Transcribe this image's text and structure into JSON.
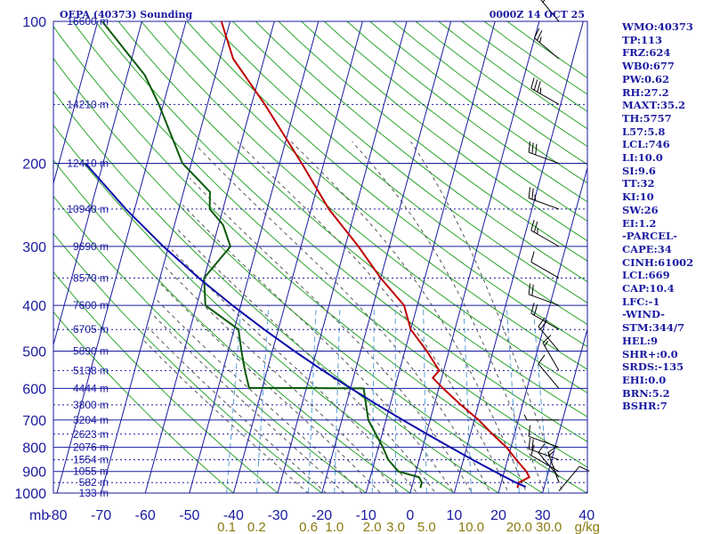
{
  "header": {
    "station": "OEPA (40373) Sounding",
    "time": "0000Z 14 OCT 25"
  },
  "chart_data": {
    "type": "skew-t",
    "title": "OEPA (40373) Sounding",
    "valid_time": "0000Z 14 OCT 25",
    "pressure_axis": {
      "label": "mb",
      "range": [
        1000,
        100
      ],
      "ticks": [
        100,
        200,
        300,
        400,
        500,
        600,
        700,
        800,
        900,
        1000
      ],
      "tick_labels": [
        "100",
        "200",
        "300",
        "400",
        "500",
        "600",
        "700",
        "800",
        "900",
        "1000"
      ]
    },
    "temperature_axis": {
      "label": "°C",
      "range": [
        -80,
        40
      ],
      "ticks": [
        -80,
        -70,
        -60,
        -50,
        -40,
        -30,
        -20,
        -10,
        0,
        10,
        20,
        30,
        40
      ],
      "tick_labels": [
        "-80",
        "-70",
        "-60",
        "-50",
        "-40",
        "-30",
        "-20",
        "-10",
        "0",
        "10",
        "20",
        "30",
        "40"
      ]
    },
    "mixing_ratio_axis": {
      "unit": "g/kg",
      "ticks": [
        0.1,
        0.2,
        0.6,
        1.0,
        2.0,
        3.0,
        5.0,
        10.0,
        20.0,
        30.0
      ],
      "tick_labels": [
        "0.1",
        "0.2",
        "0.6",
        "1.0",
        "2.0",
        "3.0",
        "5.0",
        "10.0",
        "20.0",
        "30.0"
      ],
      "unit_label": "g/kg"
    },
    "height_labels": [
      {
        "p": 100,
        "label": "16600 m"
      },
      {
        "p": 150,
        "label": "14210 m"
      },
      {
        "p": 200,
        "label": "12410 m"
      },
      {
        "p": 250,
        "label": "10940 m"
      },
      {
        "p": 300,
        "label": "9690 m"
      },
      {
        "p": 350,
        "label": "8570 m"
      },
      {
        "p": 400,
        "label": "7600 m"
      },
      {
        "p": 450,
        "label": "6705 m"
      },
      {
        "p": 500,
        "label": "5890 m"
      },
      {
        "p": 550,
        "label": "5138 m"
      },
      {
        "p": 600,
        "label": "4444 m"
      },
      {
        "p": 650,
        "label": "3800 m"
      },
      {
        "p": 700,
        "label": "3204 m"
      },
      {
        "p": 750,
        "label": "2623 m"
      },
      {
        "p": 800,
        "label": "2076 m"
      },
      {
        "p": 850,
        "label": "1554 m"
      },
      {
        "p": 900,
        "label": "1055 m"
      },
      {
        "p": 950,
        "label": "582 m"
      },
      {
        "p": 1000,
        "label": "133 m"
      }
    ],
    "series": [
      {
        "name": "temperature",
        "color": "#c00000",
        "points": [
          [
            975,
            24
          ],
          [
            950,
            24
          ],
          [
            925,
            26
          ],
          [
            900,
            25
          ],
          [
            850,
            22
          ],
          [
            800,
            19
          ],
          [
            750,
            15
          ],
          [
            700,
            11
          ],
          [
            650,
            6
          ],
          [
            600,
            1
          ],
          [
            570,
            -2
          ],
          [
            550,
            -1
          ],
          [
            500,
            -5
          ],
          [
            450,
            -10
          ],
          [
            400,
            -13
          ],
          [
            350,
            -20
          ],
          [
            300,
            -27
          ],
          [
            250,
            -36
          ],
          [
            200,
            -45
          ],
          [
            150,
            -57
          ],
          [
            120,
            -67
          ],
          [
            100,
            -72
          ]
        ]
      },
      {
        "name": "dewpoint",
        "color": "#0a5a0a",
        "points": [
          [
            975,
            2
          ],
          [
            950,
            2
          ],
          [
            925,
            1
          ],
          [
            900,
            -4
          ],
          [
            850,
            -7
          ],
          [
            800,
            -9
          ],
          [
            700,
            -14
          ],
          [
            600,
            -17
          ],
          [
            598,
            -43
          ],
          [
            550,
            -45
          ],
          [
            500,
            -47
          ],
          [
            450,
            -49
          ],
          [
            400,
            -58
          ],
          [
            350,
            -60
          ],
          [
            300,
            -56
          ],
          [
            270,
            -59
          ],
          [
            250,
            -63
          ],
          [
            230,
            -64
          ],
          [
            200,
            -72
          ],
          [
            150,
            -81
          ],
          [
            130,
            -86
          ],
          [
            100,
            -99
          ]
        ]
      },
      {
        "name": "parcel",
        "color": "#0a0aaa",
        "points": [
          [
            970,
            25.8
          ],
          [
            950,
            23.3
          ],
          [
            900,
            17.8
          ],
          [
            850,
            12.1
          ],
          [
            800,
            6.3
          ],
          [
            750,
            0.2
          ],
          [
            700,
            -6.2
          ],
          [
            650,
            -12.9
          ],
          [
            600,
            -19.9
          ],
          [
            550,
            -27.3
          ],
          [
            500,
            -35.0
          ],
          [
            450,
            -43.2
          ],
          [
            400,
            -51.9
          ],
          [
            350,
            -61.2
          ],
          [
            300,
            -71.2
          ],
          [
            250,
            -82.0
          ],
          [
            200,
            -94.0
          ]
        ]
      }
    ],
    "wind_barbs": [
      {
        "p": 990,
        "dir": 40,
        "spd": 10
      },
      {
        "p": 950,
        "dir": 340,
        "spd": 15
      },
      {
        "p": 925,
        "dir": 320,
        "spd": 10
      },
      {
        "p": 900,
        "dir": 300,
        "spd": 10
      },
      {
        "p": 850,
        "dir": 290,
        "spd": 20
      },
      {
        "p": 800,
        "dir": 290,
        "spd": 10
      },
      {
        "p": 700,
        "dir": 270,
        "spd": 5
      },
      {
        "p": 600,
        "dir": 320,
        "spd": 10
      },
      {
        "p": 550,
        "dir": 330,
        "spd": 15
      },
      {
        "p": 500,
        "dir": 320,
        "spd": 20
      },
      {
        "p": 450,
        "dir": 300,
        "spd": 20
      },
      {
        "p": 400,
        "dir": 290,
        "spd": 20
      },
      {
        "p": 350,
        "dir": 300,
        "spd": 10
      },
      {
        "p": 300,
        "dir": 300,
        "spd": 25
      },
      {
        "p": 250,
        "dir": 290,
        "spd": 25
      },
      {
        "p": 200,
        "dir": 290,
        "spd": 30
      },
      {
        "p": 150,
        "dir": 300,
        "spd": 35
      },
      {
        "p": 120,
        "dir": 310,
        "spd": 25
      },
      {
        "p": 100,
        "dir": 320,
        "spd": 30
      }
    ],
    "indices": [
      "WMO:40373",
      "TP:113",
      "FRZ:624",
      "WB0:677",
      "PW:0.62",
      "RH:27.2",
      "MAXT:35.2",
      "TH:5757",
      "L57:5.8",
      "LCL:746",
      "LI:10.0",
      "SI:9.6",
      "TT:32",
      "KI:10",
      "SW:26",
      "EI:1.2",
      "-PARCEL-",
      "CAPE:34",
      "CINH:61002",
      "LCL:669",
      "CAP:10.4",
      "LFC:-1",
      "-WIND-",
      "STM:344/7",
      "HEL:9",
      "SHR+:0.0",
      "SRDS:-135",
      "EHI:0.0",
      "BRN:5.2",
      "BSHR:7"
    ]
  },
  "colors": {
    "grid": "#1a1aa0",
    "dry_adiabat": "#2aa52a",
    "moist_adiabat": "#555555",
    "mixing_ratio": "#5aa0d8",
    "mixing_label": "#8a7a10"
  }
}
